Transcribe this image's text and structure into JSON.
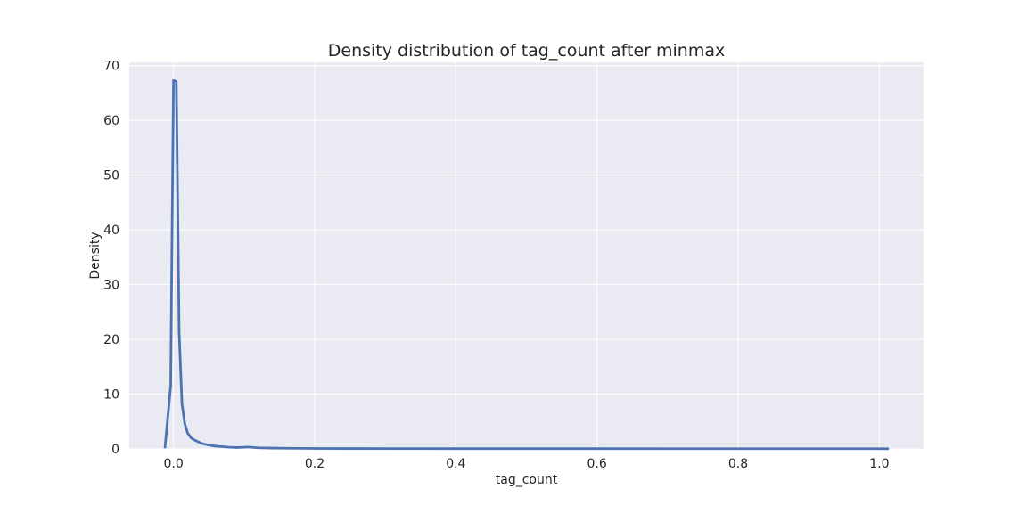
{
  "chart_data": {
    "type": "line",
    "title": "Density distribution of tag_count after minmax",
    "xlabel": "tag_count",
    "ylabel": "Density",
    "xlim": [
      -0.0627,
      1.0627
    ],
    "ylim": [
      0,
      70.6
    ],
    "xticks": [
      0.0,
      0.2,
      0.4,
      0.6,
      0.8,
      1.0
    ],
    "xtick_labels": [
      "0.0",
      "0.2",
      "0.4",
      "0.6",
      "0.8",
      "1.0"
    ],
    "yticks": [
      0,
      10,
      20,
      30,
      40,
      50,
      60,
      70
    ],
    "ytick_labels": [
      "0",
      "10",
      "20",
      "30",
      "40",
      "50",
      "60",
      "70"
    ],
    "grid": true,
    "series": [
      {
        "color": "#4c72b0",
        "x": [
          -0.012,
          -0.004,
          0.0,
          0.004,
          0.008,
          0.012,
          0.016,
          0.02,
          0.025,
          0.03,
          0.04,
          0.05,
          0.06,
          0.07,
          0.08,
          0.09,
          0.1,
          0.105,
          0.11,
          0.12,
          0.14,
          0.16,
          0.18,
          0.2,
          0.3,
          0.4,
          0.5,
          0.6,
          0.7,
          0.8,
          0.9,
          1.0,
          1.012
        ],
        "y": [
          0.3,
          11.5,
          67.3,
          67.1,
          21.3,
          8.2,
          4.6,
          2.9,
          2.0,
          1.6,
          1.0,
          0.7,
          0.5,
          0.4,
          0.3,
          0.25,
          0.3,
          0.35,
          0.3,
          0.2,
          0.15,
          0.12,
          0.1,
          0.08,
          0.06,
          0.05,
          0.05,
          0.05,
          0.04,
          0.04,
          0.04,
          0.04,
          0.03
        ]
      }
    ]
  },
  "colors": {
    "plot_background": "#eaeaf2",
    "grid": "#ffffff",
    "line": "#4c72b0",
    "text": "#262626"
  }
}
